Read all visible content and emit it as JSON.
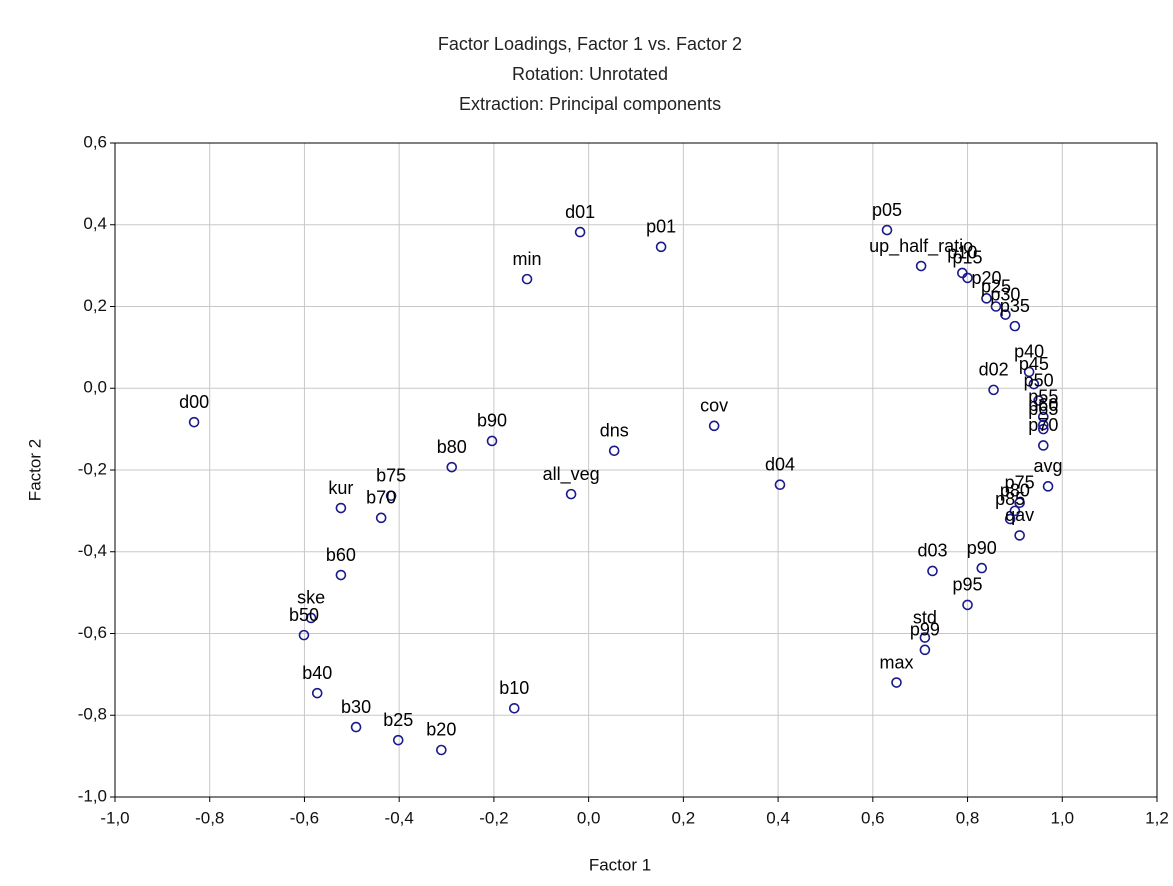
{
  "chart_data": {
    "type": "scatter",
    "title": "Factor Loadings, Factor 1 vs. Factor 2",
    "subtitle": [
      "Rotation: Unrotated",
      "Extraction: Principal components"
    ],
    "x_label": "Factor 1",
    "y_label": "Factor 2",
    "color": "#1a1a8c",
    "grid": true,
    "xlim": [
      -1.0,
      1.2
    ],
    "ylim": [
      -1.0,
      0.6
    ],
    "xticks": [
      {
        "value": -1.0,
        "label": "-1,0"
      },
      {
        "value": -0.8,
        "label": "-0,8"
      },
      {
        "value": -0.6,
        "label": "-0,6"
      },
      {
        "value": -0.4,
        "label": "-0,4"
      },
      {
        "value": -0.2,
        "label": "-0,2"
      },
      {
        "value": 0.0,
        "label": "0,0"
      },
      {
        "value": 0.2,
        "label": "0,2"
      },
      {
        "value": 0.4,
        "label": "0,4"
      },
      {
        "value": 0.6,
        "label": "0,6"
      },
      {
        "value": 0.8,
        "label": "0,8"
      },
      {
        "value": 1.0,
        "label": "1,0"
      },
      {
        "value": 1.2,
        "label": "1,2"
      }
    ],
    "yticks": [
      {
        "value": -1.0,
        "label": "-1,0"
      },
      {
        "value": -0.8,
        "label": "-0,8"
      },
      {
        "value": -0.6,
        "label": "-0,6"
      },
      {
        "value": -0.4,
        "label": "-0,4"
      },
      {
        "value": -0.2,
        "label": "-0,2"
      },
      {
        "value": 0.0,
        "label": "0,0"
      },
      {
        "value": 0.2,
        "label": "0,2"
      },
      {
        "value": 0.4,
        "label": "0,4"
      },
      {
        "value": 0.6,
        "label": "0,6"
      }
    ],
    "labels": [
      "d00",
      "d01",
      "p01",
      "min",
      "p05",
      "up_half_ratio",
      "p10",
      "p15",
      "p20",
      "p25",
      "p30",
      "p35",
      "d02",
      "p40",
      "p45",
      "p50",
      "p55",
      "p60",
      "p65",
      "p70",
      "avg",
      "p75",
      "p80",
      "p85",
      "qav",
      "p90",
      "p95",
      "d03",
      "std",
      "p99",
      "max",
      "d04",
      "cov",
      "dns",
      "all_veg",
      "b90",
      "b80",
      "b75",
      "b70",
      "kur",
      "b60",
      "ske",
      "b50",
      "b40",
      "b30",
      "b25",
      "b20",
      "b10"
    ],
    "x": [
      -0.833,
      -0.018,
      0.153,
      -0.13,
      0.63,
      0.702,
      0.789,
      0.8,
      0.84,
      0.86,
      0.88,
      0.9,
      0.855,
      0.93,
      0.94,
      0.95,
      0.96,
      0.96,
      0.96,
      0.96,
      0.97,
      0.91,
      0.9,
      0.89,
      0.91,
      0.83,
      0.8,
      0.726,
      0.71,
      0.71,
      0.65,
      0.404,
      0.265,
      0.054,
      -0.037,
      -0.204,
      -0.289,
      -0.417,
      -0.438,
      -0.523,
      -0.523,
      -0.586,
      -0.601,
      -0.573,
      -0.491,
      -0.402,
      -0.311,
      -0.157
    ],
    "values": [
      -0.083,
      0.382,
      0.346,
      0.267,
      0.387,
      0.299,
      0.282,
      0.27,
      0.22,
      0.2,
      0.18,
      0.152,
      -0.004,
      0.04,
      0.01,
      -0.03,
      -0.07,
      -0.09,
      -0.1,
      -0.14,
      -0.24,
      -0.28,
      -0.3,
      -0.32,
      -0.36,
      -0.44,
      -0.53,
      -0.447,
      -0.61,
      -0.64,
      -0.72,
      -0.236,
      -0.092,
      -0.153,
      -0.259,
      -0.129,
      -0.193,
      -0.263,
      -0.317,
      -0.293,
      -0.457,
      -0.562,
      -0.604,
      -0.746,
      -0.829,
      -0.861,
      -0.885,
      -0.783
    ]
  }
}
